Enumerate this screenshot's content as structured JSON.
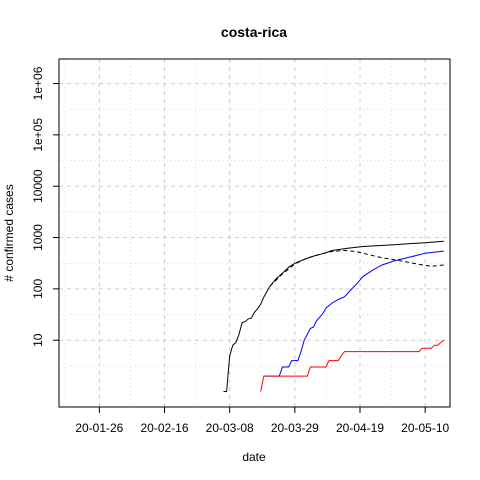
{
  "chart_data": {
    "type": "line",
    "title": "costa-rica",
    "xlabel": "date",
    "ylabel": "# confirmed cases",
    "x_axis": {
      "type": "date",
      "range": [
        "2020-01-13",
        "2020-05-18"
      ],
      "ticks": [
        "2020-01-26",
        "2020-02-16",
        "2020-03-08",
        "2020-03-29",
        "2020-04-19",
        "2020-05-10"
      ],
      "tick_labels": [
        "20-01-26",
        "20-02-16",
        "20-03-08",
        "20-03-29",
        "20-04-19",
        "20-05-10"
      ]
    },
    "y_axis": {
      "scale": "log",
      "range": [
        0.5,
        3000000
      ],
      "ticks": [
        10,
        100,
        1000,
        10000,
        100000,
        1000000
      ],
      "tick_labels": [
        "10",
        "100",
        "1000",
        "10000",
        "1e+05",
        "1e+06"
      ]
    },
    "grid": true,
    "series": [
      {
        "color": "#000000",
        "dash": "solid",
        "points": [
          [
            "2020-03-06",
            1
          ],
          [
            "2020-03-07",
            1
          ],
          [
            "2020-03-08",
            5
          ],
          [
            "2020-03-09",
            8
          ],
          [
            "2020-03-10",
            9
          ],
          [
            "2020-03-11",
            13
          ],
          [
            "2020-03-12",
            22
          ],
          [
            "2020-03-13",
            23
          ],
          [
            "2020-03-14",
            26
          ],
          [
            "2020-03-15",
            27
          ],
          [
            "2020-03-16",
            35
          ],
          [
            "2020-03-17",
            41
          ],
          [
            "2020-03-18",
            50
          ],
          [
            "2020-03-19",
            69
          ],
          [
            "2020-03-20",
            89
          ],
          [
            "2020-03-21",
            113
          ],
          [
            "2020-03-23",
            158
          ],
          [
            "2020-03-25",
            201
          ],
          [
            "2020-03-27",
            263
          ],
          [
            "2020-03-29",
            314
          ],
          [
            "2020-04-01",
            375
          ],
          [
            "2020-04-04",
            435
          ],
          [
            "2020-04-07",
            483
          ],
          [
            "2020-04-10",
            558
          ],
          [
            "2020-04-15",
            618
          ],
          [
            "2020-04-20",
            669
          ],
          [
            "2020-04-25",
            697
          ],
          [
            "2020-04-30",
            725
          ],
          [
            "2020-05-05",
            761
          ],
          [
            "2020-05-10",
            792
          ],
          [
            "2020-05-16",
            843
          ]
        ]
      },
      {
        "color": "#000000",
        "dash": "dashed",
        "points": [
          [
            "2020-03-21",
            113
          ],
          [
            "2020-03-25",
            195
          ],
          [
            "2020-03-29",
            305
          ],
          [
            "2020-04-02",
            400
          ],
          [
            "2020-04-06",
            470
          ],
          [
            "2020-04-10",
            535
          ],
          [
            "2020-04-14",
            560
          ],
          [
            "2020-04-18",
            530
          ],
          [
            "2020-04-22",
            460
          ],
          [
            "2020-04-26",
            405
          ],
          [
            "2020-04-30",
            370
          ],
          [
            "2020-05-04",
            335
          ],
          [
            "2020-05-08",
            300
          ],
          [
            "2020-05-12",
            275
          ],
          [
            "2020-05-16",
            292
          ]
        ]
      },
      {
        "color": "#0000ff",
        "dash": "solid",
        "points": [
          [
            "2020-03-19",
            2
          ],
          [
            "2020-03-24",
            2
          ],
          [
            "2020-03-25",
            3
          ],
          [
            "2020-03-27",
            3
          ],
          [
            "2020-03-28",
            4
          ],
          [
            "2020-03-30",
            4
          ],
          [
            "2020-03-31",
            6
          ],
          [
            "2020-04-01",
            10
          ],
          [
            "2020-04-02",
            13
          ],
          [
            "2020-04-03",
            17
          ],
          [
            "2020-04-04",
            18
          ],
          [
            "2020-04-05",
            24
          ],
          [
            "2020-04-06",
            28
          ],
          [
            "2020-04-07",
            33
          ],
          [
            "2020-04-08",
            42
          ],
          [
            "2020-04-10",
            53
          ],
          [
            "2020-04-12",
            62
          ],
          [
            "2020-04-14",
            70
          ],
          [
            "2020-04-16",
            95
          ],
          [
            "2020-04-18",
            126
          ],
          [
            "2020-04-20",
            175
          ],
          [
            "2020-04-23",
            230
          ],
          [
            "2020-04-26",
            290
          ],
          [
            "2020-04-30",
            350
          ],
          [
            "2020-05-05",
            415
          ],
          [
            "2020-05-10",
            495
          ],
          [
            "2020-05-16",
            545
          ]
        ]
      },
      {
        "color": "#ff0000",
        "dash": "solid",
        "points": [
          [
            "2020-03-18",
            1
          ],
          [
            "2020-03-19",
            2
          ],
          [
            "2020-04-02",
            2
          ],
          [
            "2020-04-03",
            3
          ],
          [
            "2020-04-08",
            3
          ],
          [
            "2020-04-09",
            4
          ],
          [
            "2020-04-12",
            4
          ],
          [
            "2020-04-13",
            5
          ],
          [
            "2020-04-14",
            6
          ],
          [
            "2020-05-08",
            6
          ],
          [
            "2020-05-09",
            7
          ],
          [
            "2020-05-12",
            7
          ],
          [
            "2020-05-13",
            8
          ],
          [
            "2020-05-14",
            8
          ],
          [
            "2020-05-15",
            9
          ],
          [
            "2020-05-16",
            10
          ]
        ]
      }
    ]
  }
}
